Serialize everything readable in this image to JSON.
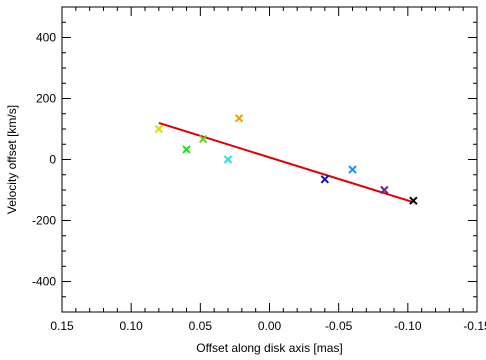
{
  "chart_data": {
    "type": "scatter",
    "xlabel": "Offset along disk axis [mas]",
    "ylabel": "Velocity offset [km/s]",
    "xlim": [
      0.15,
      -0.15
    ],
    "ylim": [
      -500,
      500
    ],
    "x_ticks": [
      "0.15",
      "0.10",
      "0.05",
      "0.00",
      "-0.05",
      "-0.10",
      "-0.15"
    ],
    "y_ticks": [
      "-400",
      "-200",
      "0",
      "200",
      "400"
    ],
    "x_tick_values": [
      0.15,
      0.1,
      0.05,
      0.0,
      -0.05,
      -0.1,
      -0.15
    ],
    "y_tick_values": [
      -400,
      -200,
      0,
      200,
      400
    ],
    "x_minor_step": 0.01,
    "y_minor_step": 50,
    "grid": false,
    "points": [
      {
        "x": 0.08,
        "y": 100,
        "color": "#d8e000"
      },
      {
        "x": 0.06,
        "y": 33,
        "color": "#22e020"
      },
      {
        "x": 0.048,
        "y": 67,
        "color": "#66d020"
      },
      {
        "x": 0.022,
        "y": 135,
        "color": "#f0a000"
      },
      {
        "x": 0.03,
        "y": 0,
        "color": "#30e0d0"
      },
      {
        "x": -0.04,
        "y": -65,
        "color": "#1010c0"
      },
      {
        "x": -0.06,
        "y": -33,
        "color": "#2090f0"
      },
      {
        "x": -0.083,
        "y": -100,
        "color": "#702090"
      },
      {
        "x": -0.104,
        "y": -135,
        "color": "#000000"
      }
    ],
    "fit_line": {
      "x": [
        0.08,
        -0.104
      ],
      "y": [
        120,
        -140
      ],
      "color": "#e00000"
    }
  }
}
